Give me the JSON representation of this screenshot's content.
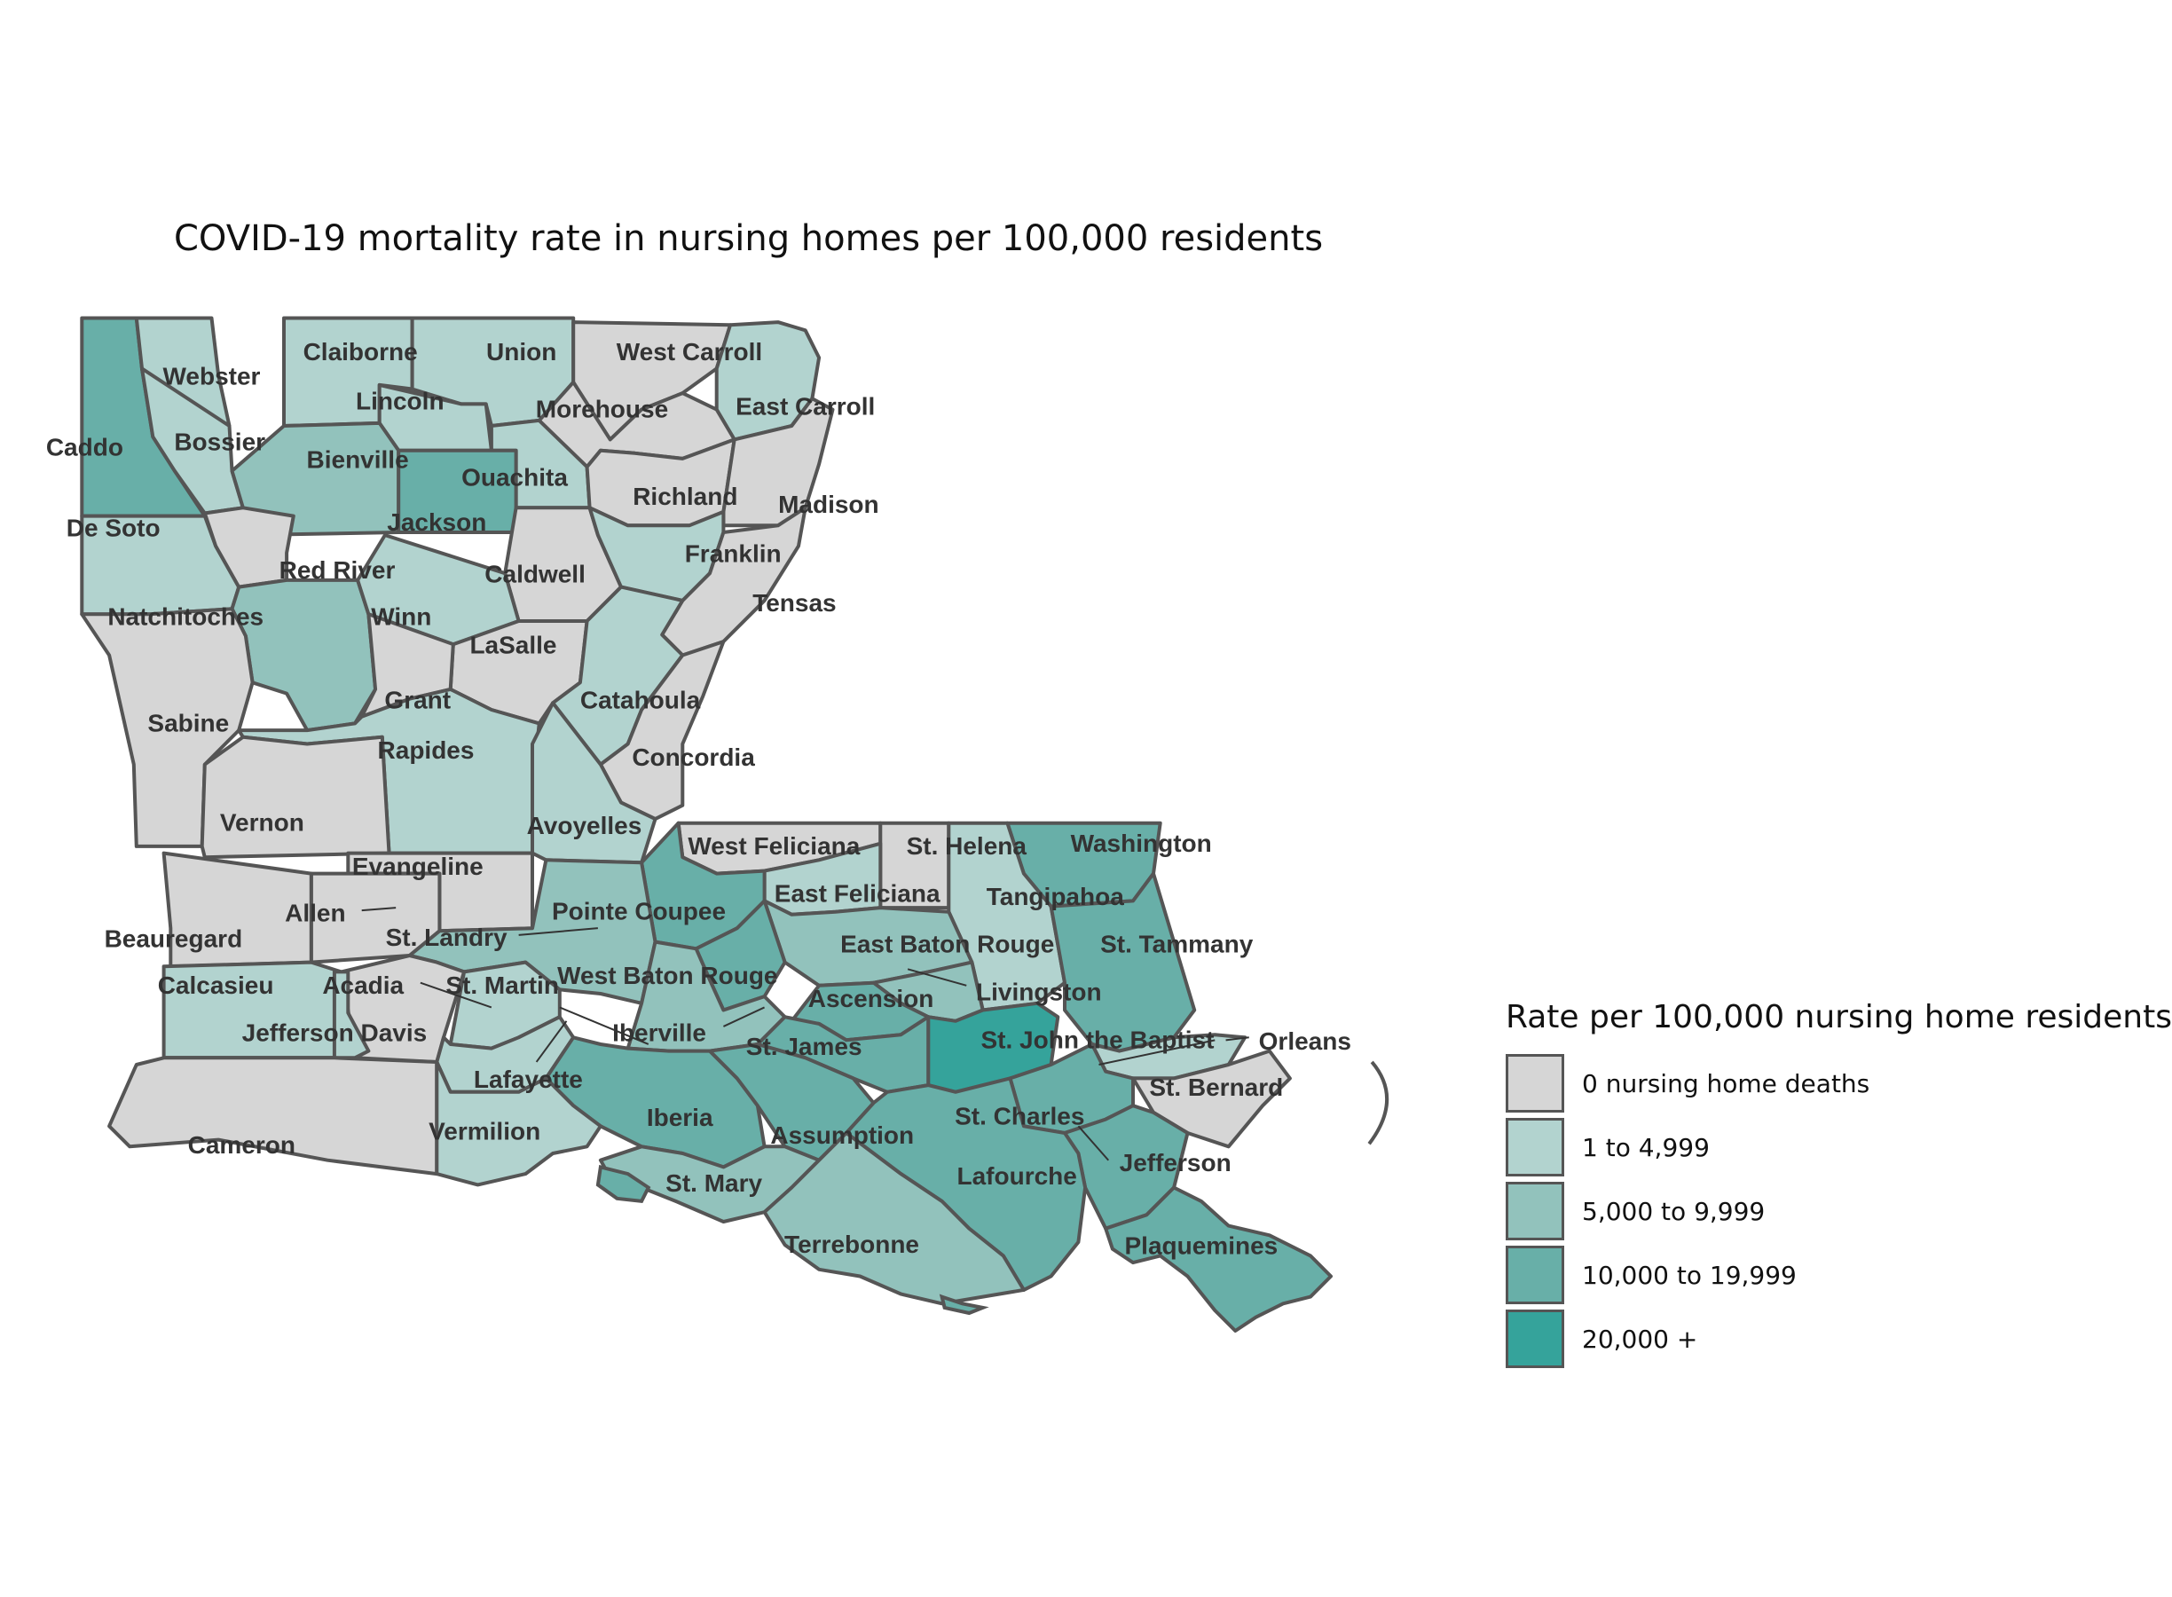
{
  "title": "COVID-19 mortality rate in nursing homes per 100,000 residents",
  "legend": {
    "title": "Rate per 100,000 nursing home residents",
    "items": [
      {
        "label": "0 nursing home deaths",
        "color": "#d6d6d6"
      },
      {
        "label": "1 to 4,999",
        "color": "#b2d3cf"
      },
      {
        "label": "5,000 to 9,999",
        "color": "#92c2bc"
      },
      {
        "label": "10,000 to 19,999",
        "color": "#68afa8"
      },
      {
        "label": "20,000 +",
        "color": "#35a39b"
      }
    ]
  },
  "parishes": [
    {
      "name": "Caddo",
      "rate_class": 3
    },
    {
      "name": "Webster",
      "rate_class": 1
    },
    {
      "name": "Bossier",
      "rate_class": 1
    },
    {
      "name": "Claiborne",
      "rate_class": 1
    },
    {
      "name": "Union",
      "rate_class": 1
    },
    {
      "name": "West Carroll",
      "rate_class": 0
    },
    {
      "name": "East Carroll",
      "rate_class": 1
    },
    {
      "name": "Morehouse",
      "rate_class": 0
    },
    {
      "name": "Lincoln",
      "rate_class": 1
    },
    {
      "name": "Bienville",
      "rate_class": 2
    },
    {
      "name": "Ouachita",
      "rate_class": 1
    },
    {
      "name": "Jackson",
      "rate_class": 3
    },
    {
      "name": "Richland",
      "rate_class": 0
    },
    {
      "name": "Madison",
      "rate_class": 0
    },
    {
      "name": "De Soto",
      "rate_class": 1
    },
    {
      "name": "Red River",
      "rate_class": 0
    },
    {
      "name": "Caldwell",
      "rate_class": 0
    },
    {
      "name": "Franklin",
      "rate_class": 1
    },
    {
      "name": "Tensas",
      "rate_class": 0
    },
    {
      "name": "Natchitoches",
      "rate_class": 2
    },
    {
      "name": "Winn",
      "rate_class": 1
    },
    {
      "name": "LaSalle",
      "rate_class": 0
    },
    {
      "name": "Catahoula",
      "rate_class": 1
    },
    {
      "name": "Grant",
      "rate_class": 0
    },
    {
      "name": "Sabine",
      "rate_class": 0
    },
    {
      "name": "Concordia",
      "rate_class": 0
    },
    {
      "name": "Rapides",
      "rate_class": 1
    },
    {
      "name": "Vernon",
      "rate_class": 0
    },
    {
      "name": "Avoyelles",
      "rate_class": 1
    },
    {
      "name": "Evangeline",
      "rate_class": 0
    },
    {
      "name": "West Feliciana",
      "rate_class": 0
    },
    {
      "name": "St. Helena",
      "rate_class": 0
    },
    {
      "name": "Washington",
      "rate_class": 3
    },
    {
      "name": "East Feliciana",
      "rate_class": 1
    },
    {
      "name": "Tangipahoa",
      "rate_class": 1
    },
    {
      "name": "Allen",
      "rate_class": 0
    },
    {
      "name": "Pointe Coupee",
      "rate_class": 3
    },
    {
      "name": "St. Landry",
      "rate_class": 2
    },
    {
      "name": "Beauregard",
      "rate_class": 0
    },
    {
      "name": "East Baton Rouge",
      "rate_class": 2
    },
    {
      "name": "St. Tammany",
      "rate_class": 3
    },
    {
      "name": "Calcasieu",
      "rate_class": 1
    },
    {
      "name": "Acadia",
      "rate_class": 0
    },
    {
      "name": "St. Martin",
      "rate_class": 1
    },
    {
      "name": "West Baton Rouge",
      "rate_class": 3
    },
    {
      "name": "Livingston",
      "rate_class": 2
    },
    {
      "name": "Ascension",
      "rate_class": 3
    },
    {
      "name": "Jefferson Davis",
      "rate_class": 1
    },
    {
      "name": "Iberville",
      "rate_class": 2
    },
    {
      "name": "St. John the Baptist",
      "rate_class": 4
    },
    {
      "name": "Orleans",
      "rate_class": 1
    },
    {
      "name": "St. James",
      "rate_class": 3
    },
    {
      "name": "Lafayette",
      "rate_class": 1
    },
    {
      "name": "St. Bernard",
      "rate_class": 0
    },
    {
      "name": "Iberia",
      "rate_class": 3
    },
    {
      "name": "St. Charles",
      "rate_class": 3
    },
    {
      "name": "Cameron",
      "rate_class": 0
    },
    {
      "name": "Vermilion",
      "rate_class": 1
    },
    {
      "name": "Assumption",
      "rate_class": 3
    },
    {
      "name": "Jefferson",
      "rate_class": 3
    },
    {
      "name": "St. Mary",
      "rate_class": 2
    },
    {
      "name": "Lafourche",
      "rate_class": 3
    },
    {
      "name": "Plaquemines",
      "rate_class": 3
    },
    {
      "name": "Terrebonne",
      "rate_class": 2
    }
  ]
}
